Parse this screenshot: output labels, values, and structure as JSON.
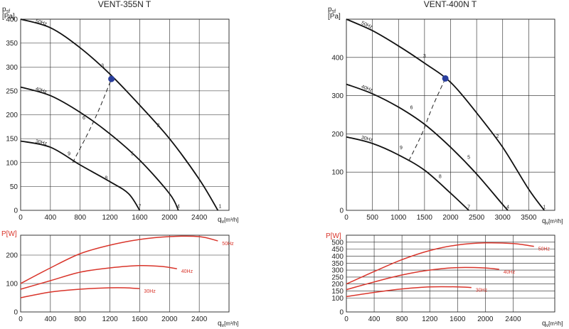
{
  "chart_data": [
    {
      "type": "line",
      "title": "VENT-355N T",
      "panel": "pressure",
      "ylabel": "psf [Pa]",
      "xlabel": "qv[m³/h]",
      "xlim": [
        0,
        2800
      ],
      "ylim": [
        0,
        400
      ],
      "xticks": [
        0,
        400,
        800,
        1200,
        1600,
        2000,
        2400
      ],
      "yticks": [
        0,
        50,
        100,
        150,
        200,
        250,
        300,
        350,
        400
      ],
      "series": [
        {
          "name": "50Hz",
          "x": [
            0,
            400,
            800,
            1200,
            1600,
            2000,
            2400,
            2650
          ],
          "y": [
            400,
            382,
            340,
            285,
            220,
            150,
            65,
            0
          ]
        },
        {
          "name": "40Hz",
          "x": [
            0,
            400,
            800,
            1200,
            1600,
            2000,
            2120
          ],
          "y": [
            258,
            240,
            205,
            160,
            105,
            35,
            0
          ]
        },
        {
          "name": "30Hz",
          "x": [
            0,
            400,
            800,
            1200,
            1450,
            1600
          ],
          "y": [
            145,
            132,
            95,
            60,
            35,
            0
          ]
        }
      ],
      "operating_point": {
        "x": 1220,
        "y": 275
      },
      "dashed_line": {
        "x": [
          700,
          900,
          1050,
          1220
        ],
        "y": [
          100,
          160,
          210,
          275
        ]
      },
      "points": [
        {
          "label": "1",
          "x": 2680,
          "y": 5
        },
        {
          "label": "2",
          "x": 1850,
          "y": 175
        },
        {
          "label": "3",
          "x": 1100,
          "y": 300
        },
        {
          "label": "4",
          "x": 2120,
          "y": 5
        },
        {
          "label": "5",
          "x": 1500,
          "y": 115
        },
        {
          "label": "6",
          "x": 850,
          "y": 190
        },
        {
          "label": "7",
          "x": 1600,
          "y": 5
        },
        {
          "label": "8",
          "x": 1150,
          "y": 65
        },
        {
          "label": "9",
          "x": 650,
          "y": 115
        }
      ]
    },
    {
      "type": "line",
      "title": "",
      "panel": "power",
      "ylabel": "P[W]",
      "xlabel": "qv[m³/h]",
      "xlim": [
        0,
        2800
      ],
      "ylim": [
        0,
        270
      ],
      "xticks": [
        0,
        400,
        800,
        1200,
        1600,
        2000,
        2400
      ],
      "yticks": [
        0,
        100,
        200
      ],
      "series": [
        {
          "name": "50Hz",
          "x": [
            0,
            400,
            800,
            1200,
            1600,
            2000,
            2400,
            2650
          ],
          "y": [
            100,
            155,
            205,
            235,
            255,
            265,
            265,
            250
          ]
        },
        {
          "name": "40Hz",
          "x": [
            0,
            400,
            800,
            1200,
            1600,
            1900,
            2100
          ],
          "y": [
            80,
            110,
            140,
            155,
            163,
            160,
            152
          ]
        },
        {
          "name": "30Hz",
          "x": [
            0,
            400,
            800,
            1200,
            1400,
            1600
          ],
          "y": [
            50,
            70,
            80,
            85,
            85,
            82
          ]
        }
      ]
    },
    {
      "type": "line",
      "title": "VENT-400N T",
      "panel": "pressure",
      "ylabel": "psf [Pa]",
      "xlabel": "qv[m³/h]",
      "xlim": [
        0,
        4000
      ],
      "ylim": [
        0,
        500
      ],
      "xticks": [
        0,
        500,
        1000,
        1500,
        2000,
        2500,
        3000,
        3500
      ],
      "yticks": [
        0,
        100,
        200,
        300,
        400
      ],
      "series": [
        {
          "name": "50Hz",
          "x": [
            0,
            500,
            1000,
            1500,
            2000,
            2500,
            3000,
            3500,
            3800
          ],
          "y": [
            500,
            470,
            430,
            385,
            335,
            255,
            165,
            55,
            0
          ]
        },
        {
          "name": "40Hz",
          "x": [
            0,
            500,
            1000,
            1500,
            2000,
            2500,
            3000,
            3100
          ],
          "y": [
            330,
            305,
            270,
            225,
            165,
            95,
            15,
            0
          ]
        },
        {
          "name": "30Hz",
          "x": [
            0,
            500,
            1000,
            1500,
            2000,
            2350
          ],
          "y": [
            192,
            175,
            145,
            105,
            45,
            0
          ]
        }
      ],
      "operating_point": {
        "x": 1900,
        "y": 345
      },
      "dashed_line": {
        "x": [
          1200,
          1450,
          1650,
          1900
        ],
        "y": [
          130,
          200,
          270,
          345
        ]
      },
      "points": [
        {
          "label": "1",
          "x": 3800,
          "y": 5
        },
        {
          "label": "2",
          "x": 2900,
          "y": 190
        },
        {
          "label": "3",
          "x": 1500,
          "y": 400
        },
        {
          "label": "4",
          "x": 3100,
          "y": 5
        },
        {
          "label": "5",
          "x": 2350,
          "y": 135
        },
        {
          "label": "6",
          "x": 1250,
          "y": 265
        },
        {
          "label": "7",
          "x": 2350,
          "y": 5
        },
        {
          "label": "8",
          "x": 1800,
          "y": 85
        },
        {
          "label": "9",
          "x": 1050,
          "y": 160
        }
      ]
    },
    {
      "type": "line",
      "title": "",
      "panel": "power",
      "ylabel": "P[W]",
      "xlabel": "qv[m³/h]",
      "xlim": [
        0,
        3000
      ],
      "ylim": [
        0,
        550
      ],
      "xticks": [
        0,
        400,
        800,
        1200,
        1600,
        2000,
        2400
      ],
      "yticks": [
        0,
        100,
        150,
        200,
        250,
        300,
        350,
        400,
        450,
        500
      ],
      "series": [
        {
          "name": "50Hz",
          "x": [
            0,
            400,
            800,
            1200,
            1600,
            2000,
            2400,
            2700
          ],
          "y": [
            200,
            290,
            375,
            440,
            480,
            495,
            490,
            470
          ]
        },
        {
          "name": "40Hz",
          "x": [
            0,
            400,
            800,
            1200,
            1600,
            2000,
            2200
          ],
          "y": [
            160,
            215,
            265,
            300,
            318,
            315,
            305
          ]
        },
        {
          "name": "30Hz",
          "x": [
            0,
            400,
            800,
            1200,
            1600,
            1800
          ],
          "y": [
            110,
            140,
            165,
            180,
            180,
            175
          ]
        }
      ]
    }
  ],
  "labels": {
    "left_title": "VENT-355N T",
    "right_title": "VENT-400N T",
    "psf": "p",
    "psf_sub": "sf",
    "pa": "[Pa]",
    "pw": "P[W]",
    "qv": "q",
    "qv_sub": "v",
    "qv_unit": "[m³/h]",
    "hz50": "50Hz",
    "hz40": "40Hz",
    "hz30": "30Hz"
  },
  "colors": {
    "pressure_curve": "#111111",
    "power_curve": "#d9352b",
    "operating_point": "#2a3f9e"
  }
}
